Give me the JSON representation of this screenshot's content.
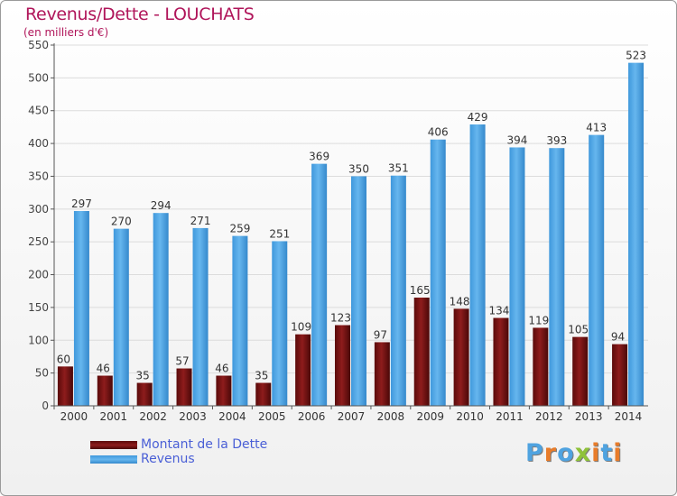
{
  "title": "Revenus/Dette - LOUCHATS",
  "subtitle": "(en milliers d'€)",
  "logo": {
    "text": "Proxiti",
    "colors": [
      "#4fa3e0",
      "#e87c2a",
      "#4fa3e0",
      "#8fc23a",
      "#e87c2a",
      "#4fa3e0",
      "#e87c2a"
    ]
  },
  "chart_data": {
    "type": "bar",
    "categories": [
      "2000",
      "2001",
      "2002",
      "2003",
      "2004",
      "2005",
      "2006",
      "2007",
      "2008",
      "2009",
      "2010",
      "2011",
      "2012",
      "2013",
      "2014"
    ],
    "series": [
      {
        "name": "Montant de la Dette",
        "color": "#7a1414",
        "values": [
          60,
          46,
          35,
          57,
          46,
          35,
          109,
          123,
          97,
          165,
          148,
          134,
          119,
          105,
          94
        ]
      },
      {
        "name": "Revenus",
        "color": "#4ea6e6",
        "values": [
          297,
          270,
          294,
          271,
          259,
          251,
          369,
          350,
          351,
          406,
          429,
          394,
          393,
          413,
          523
        ]
      }
    ],
    "ylim": [
      0,
      550
    ],
    "yticks": [
      0,
      50,
      100,
      150,
      200,
      250,
      300,
      350,
      400,
      450,
      500,
      550
    ],
    "grid": true,
    "legend_position": "bottom-left"
  }
}
